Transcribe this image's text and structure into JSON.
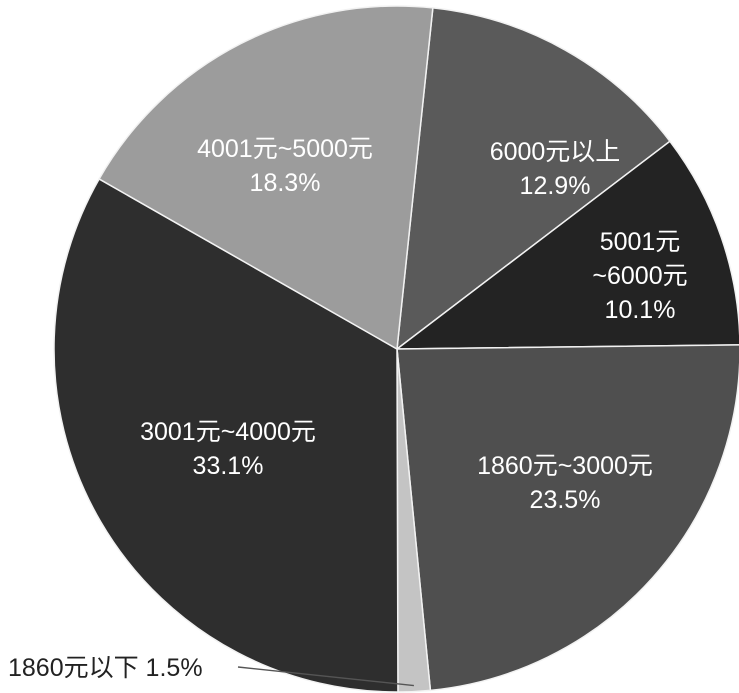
{
  "chart_data": {
    "type": "pie",
    "slices": [
      {
        "label": "6000元以上",
        "value_text": "12.9%",
        "value": 12.9,
        "color": "#5a5a5a"
      },
      {
        "label": "5001元~6000元",
        "value_text": "10.1%",
        "value": 10.1,
        "color": "#232323"
      },
      {
        "label": "1860元~3000元",
        "value_text": "23.5%",
        "value": 23.5,
        "color": "#4f4f4f"
      },
      {
        "label": "1860元以下",
        "value_text": "1.5%",
        "value": 1.5,
        "color": "#c4c4c4"
      },
      {
        "label": "3001元~4000元",
        "value_text": "33.1%",
        "value": 33.1,
        "color": "#2e2e2e"
      },
      {
        "label": "4001元~5000元",
        "value_text": "18.3%",
        "value": 18.3,
        "color": "#9c9c9c"
      }
    ]
  }
}
